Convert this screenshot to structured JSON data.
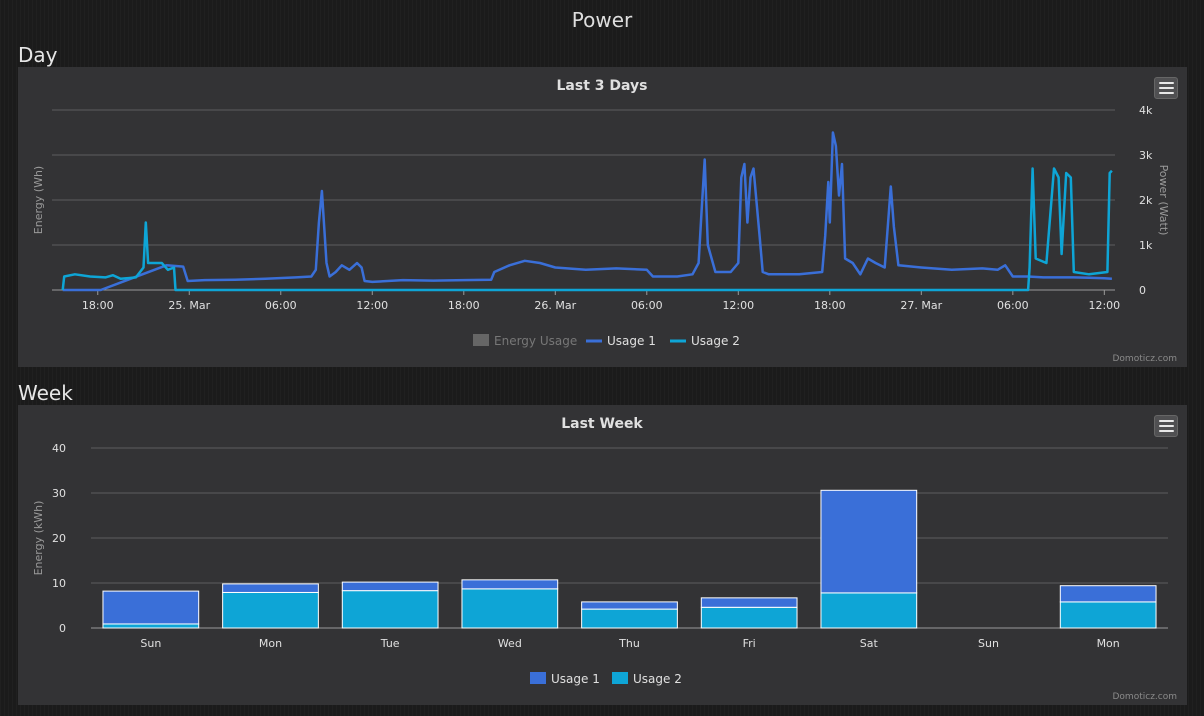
{
  "page_title": "Power",
  "sections": {
    "day": {
      "title": "Day",
      "chart_title": "Last 3 Days",
      "y_left_label": "Energy (Wh)",
      "y_right_label": "Power (Watt)",
      "credit": "Domoticz.com",
      "menu_icon": "hamburger-menu-icon"
    },
    "week": {
      "title": "Week",
      "chart_title": "Last Week",
      "y_label": "Energy (kWh)",
      "credit": "Domoticz.com",
      "menu_icon": "hamburger-menu-icon"
    }
  },
  "chart_data": [
    {
      "type": "line",
      "title": "Last 3 Days",
      "ylabel": "Energy (Wh)",
      "y2label": "Power (Watt)",
      "x_range_hours": [
        -9,
        60.7
      ],
      "x_ticks": [
        {
          "hour": -6,
          "label": "18:00"
        },
        {
          "hour": 0,
          "label": "25. Mar"
        },
        {
          "hour": 6,
          "label": "06:00"
        },
        {
          "hour": 12,
          "label": "12:00"
        },
        {
          "hour": 18,
          "label": "18:00"
        },
        {
          "hour": 24,
          "label": "26. Mar"
        },
        {
          "hour": 30,
          "label": "06:00"
        },
        {
          "hour": 36,
          "label": "12:00"
        },
        {
          "hour": 42,
          "label": "18:00"
        },
        {
          "hour": 48,
          "label": "27. Mar"
        },
        {
          "hour": 54,
          "label": "06:00"
        },
        {
          "hour": 60,
          "label": "12:00"
        }
      ],
      "y2lim": [
        0,
        4000
      ],
      "y2_ticks": [
        {
          "value": 0,
          "label": "0"
        },
        {
          "value": 1000,
          "label": "1k"
        },
        {
          "value": 2000,
          "label": "2k"
        },
        {
          "value": 3000,
          "label": "3k"
        },
        {
          "value": 4000,
          "label": "4k"
        }
      ],
      "grid": true,
      "legend_position": "bottom",
      "legend": [
        {
          "name": "Energy Usage",
          "color": "#666666",
          "symbol": "bar",
          "hidden": true
        },
        {
          "name": "Usage 1",
          "color": "#3a6fd8",
          "symbol": "line"
        },
        {
          "name": "Usage 2",
          "color": "#0ea5d6",
          "symbol": "line"
        }
      ],
      "series": [
        {
          "name": "Usage 1",
          "color": "#3a6fd8",
          "points": [
            [
              -8.3,
              0
            ],
            [
              -5.8,
              0
            ],
            [
              -1.5,
              550
            ],
            [
              -0.4,
              520
            ],
            [
              -0.1,
              200
            ],
            [
              1,
              220
            ],
            [
              3,
              230
            ],
            [
              5,
              250
            ],
            [
              7,
              280
            ],
            [
              8,
              300
            ],
            [
              8.3,
              450
            ],
            [
              8.5,
              1500
            ],
            [
              8.7,
              2200
            ],
            [
              8.85,
              1400
            ],
            [
              9,
              600
            ],
            [
              9.2,
              300
            ],
            [
              9.6,
              400
            ],
            [
              10,
              550
            ],
            [
              10.5,
              450
            ],
            [
              11,
              600
            ],
            [
              11.3,
              500
            ],
            [
              11.5,
              200
            ],
            [
              12,
              180
            ],
            [
              14,
              220
            ],
            [
              16,
              210
            ],
            [
              18,
              220
            ],
            [
              19.8,
              230
            ],
            [
              20,
              400
            ],
            [
              21,
              550
            ],
            [
              22,
              650
            ],
            [
              23,
              600
            ],
            [
              24,
              500
            ],
            [
              26,
              450
            ],
            [
              28,
              480
            ],
            [
              30,
              450
            ],
            [
              30.4,
              300
            ],
            [
              32,
              300
            ],
            [
              33,
              350
            ],
            [
              33.4,
              600
            ],
            [
              33.6,
              1800
            ],
            [
              33.8,
              2900
            ],
            [
              34,
              1000
            ],
            [
              34.5,
              400
            ],
            [
              35.5,
              400
            ],
            [
              36,
              600
            ],
            [
              36.2,
              2500
            ],
            [
              36.4,
              2800
            ],
            [
              36.6,
              1500
            ],
            [
              36.8,
              2500
            ],
            [
              37,
              2700
            ],
            [
              37.4,
              1200
            ],
            [
              37.6,
              400
            ],
            [
              38,
              350
            ],
            [
              40,
              350
            ],
            [
              41.5,
              400
            ],
            [
              41.7,
              1200
            ],
            [
              41.9,
              2400
            ],
            [
              42,
              1500
            ],
            [
              42.2,
              3500
            ],
            [
              42.4,
              3200
            ],
            [
              42.6,
              2100
            ],
            [
              42.8,
              2800
            ],
            [
              43,
              700
            ],
            [
              43.5,
              600
            ],
            [
              44,
              350
            ],
            [
              44.5,
              700
            ],
            [
              45,
              600
            ],
            [
              45.6,
              500
            ],
            [
              46,
              2300
            ],
            [
              46.2,
              1400
            ],
            [
              46.5,
              550
            ],
            [
              48,
              500
            ],
            [
              50,
              450
            ],
            [
              52,
              480
            ],
            [
              53,
              450
            ],
            [
              53.5,
              550
            ],
            [
              54,
              300
            ],
            [
              55,
              300
            ],
            [
              56,
              280
            ],
            [
              58,
              280
            ],
            [
              59,
              270
            ],
            [
              60,
              260
            ],
            [
              60.5,
              250
            ]
          ]
        },
        {
          "name": "Usage 2",
          "color": "#0ea5d6",
          "points": [
            [
              -8.3,
              0
            ],
            [
              -8.2,
              300
            ],
            [
              -7.5,
              350
            ],
            [
              -6.5,
              300
            ],
            [
              -5.5,
              280
            ],
            [
              -5,
              330
            ],
            [
              -4.5,
              250
            ],
            [
              -3.5,
              280
            ],
            [
              -3,
              500
            ],
            [
              -2.85,
              1500
            ],
            [
              -2.7,
              600
            ],
            [
              -1.8,
              600
            ],
            [
              -1.4,
              450
            ],
            [
              -1,
              500
            ],
            [
              -0.9,
              0
            ],
            [
              55,
              0
            ],
            [
              55.1,
              500
            ],
            [
              55.3,
              2700
            ],
            [
              55.5,
              700
            ],
            [
              56.2,
              600
            ],
            [
              56.7,
              2700
            ],
            [
              57,
              2500
            ],
            [
              57.2,
              800
            ],
            [
              57.5,
              2600
            ],
            [
              57.8,
              2500
            ],
            [
              58,
              400
            ],
            [
              59,
              350
            ],
            [
              60.2,
              400
            ],
            [
              60.35,
              2600
            ],
            [
              60.5,
              2650
            ]
          ]
        }
      ]
    },
    {
      "type": "bar",
      "title": "Last Week",
      "ylabel": "Energy (kWh)",
      "ylim": [
        0,
        40
      ],
      "y_ticks": [
        0,
        10,
        20,
        30,
        40
      ],
      "categories": [
        "Sun",
        "Mon",
        "Tue",
        "Wed",
        "Thu",
        "Fri",
        "Sat",
        "Sun",
        "Mon"
      ],
      "stacked": true,
      "grid": true,
      "legend_position": "bottom",
      "series": [
        {
          "name": "Usage 1",
          "color": "#3a6fd8",
          "values": [
            7.3,
            1.9,
            1.9,
            2.0,
            1.6,
            2.1,
            22.8,
            0,
            3.6
          ]
        },
        {
          "name": "Usage 2",
          "color": "#0ea5d6",
          "values": [
            0.9,
            7.9,
            8.3,
            8.7,
            4.2,
            4.6,
            7.8,
            0,
            5.8
          ]
        }
      ],
      "legend": [
        {
          "name": "Usage 1",
          "color": "#3a6fd8"
        },
        {
          "name": "Usage 2",
          "color": "#0ea5d6"
        }
      ]
    }
  ]
}
